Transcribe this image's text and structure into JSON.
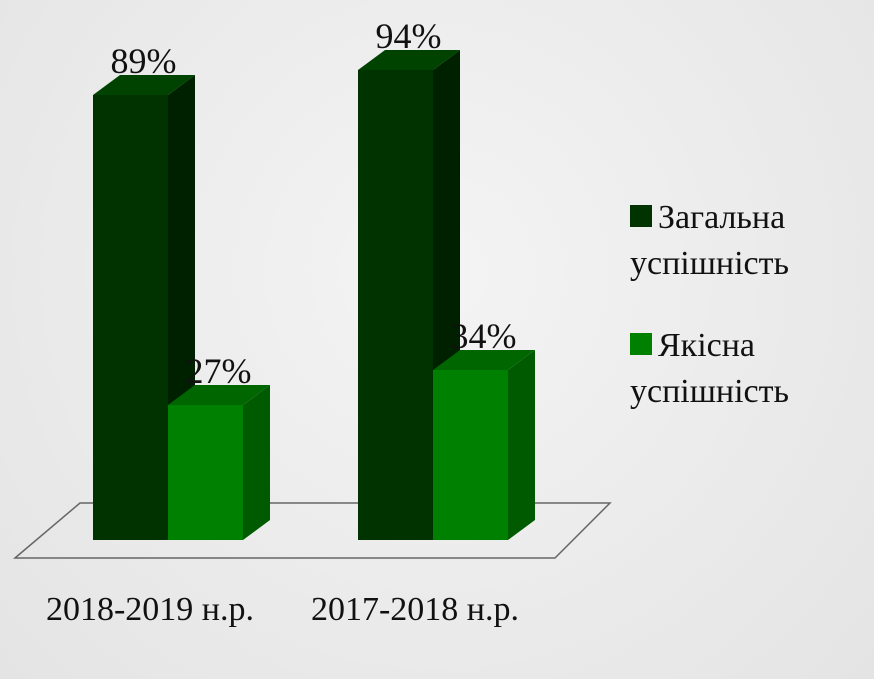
{
  "chart_data": {
    "type": "bar3d",
    "categories": [
      "2018-2019 н.р.",
      "2017-2018 н.р."
    ],
    "series": [
      {
        "name": "Загальна успішність",
        "color": "#003300",
        "values": [
          89,
          94
        ],
        "value_labels": [
          "89%",
          "94%"
        ]
      },
      {
        "name": "Якісна успішність",
        "color": "#008000",
        "values": [
          27,
          34
        ],
        "value_labels": [
          "27%",
          "34%"
        ]
      }
    ]
  }
}
